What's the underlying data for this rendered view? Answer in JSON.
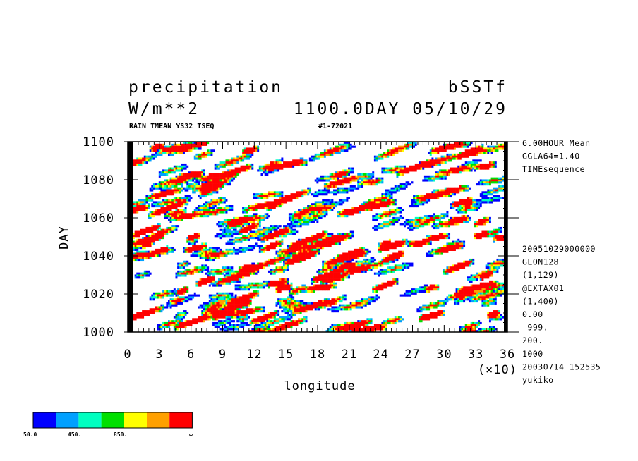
{
  "header": {
    "variable": "precipitation",
    "experiment": "bSSTf",
    "unit": "W/m**2",
    "time_label": "1100.0DAY 05/10/29",
    "subtitle_left": "RAIN TMEAN YS32 TSEQ",
    "subtitle_right": "#1-72021"
  },
  "side_info": {
    "top": [
      "6.00HOUR Mean",
      "GGLA64=1.40",
      "TIMEsequence"
    ],
    "bottom": [
      "20051029000000",
      "GLON128",
      "(1,129)",
      "@EXTAX01",
      "(1,400)",
      "0.00",
      "-999.",
      "200.",
      "1000",
      "20030714 152535",
      "yukiko"
    ]
  },
  "colorbar": {
    "colors": [
      "#0000ff",
      "#00a0ff",
      "#00ffc0",
      "#00e000",
      "#ffff00",
      "#ffa000",
      "#ff0000"
    ],
    "labels": [
      "50.0",
      "450.",
      "850.",
      "∞"
    ]
  },
  "chart_data": {
    "type": "heatmap",
    "title": "precipitation",
    "xlabel": "longitude",
    "ylabel": "DAY",
    "x_multiplier_label": "(×10)",
    "xlim": [
      0,
      36
    ],
    "ylim": [
      1000,
      1100
    ],
    "x_ticks": [
      "0",
      "3",
      "6",
      "9",
      "12",
      "15",
      "18",
      "21",
      "24",
      "27",
      "30",
      "33",
      "36"
    ],
    "y_ticks": [
      "1000",
      "1020",
      "1040",
      "1060",
      "1080",
      "1100"
    ],
    "levels": [
      50,
      250,
      450,
      650,
      850,
      1050
    ],
    "pattern": "dense eastward-propagating precipitation streaks (diagonal bands) over day 1000-1100 across all longitudes"
  }
}
